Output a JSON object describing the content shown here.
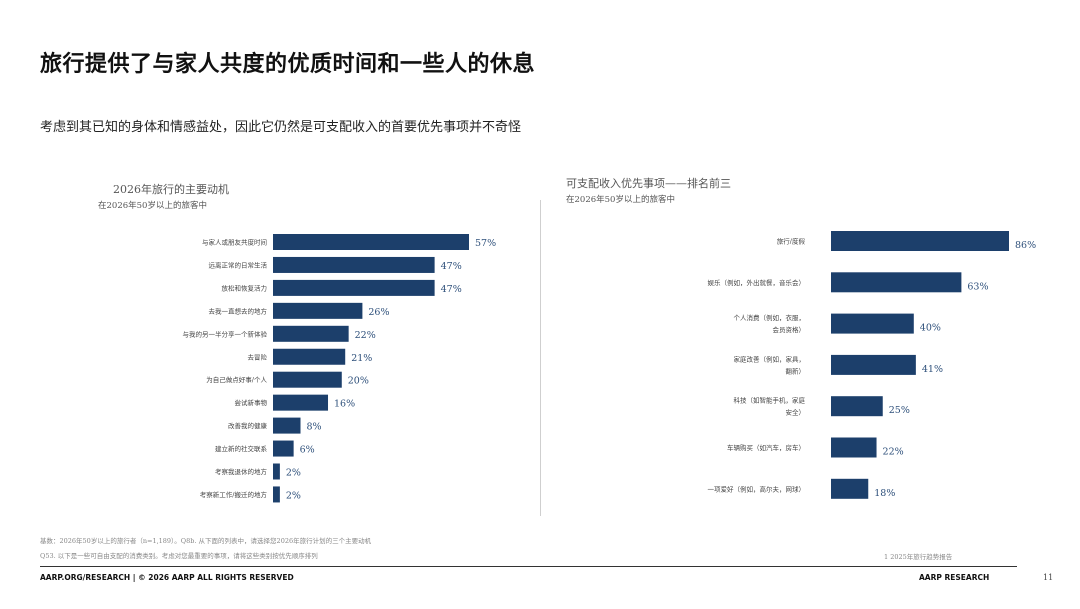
{
  "header": {
    "title": "旅行提供了与家人共度的优质时间和一些人的休息",
    "subtitle": "考虑到其已知的身体和情感益处，因此它仍然是可支配收入的首要优先事项并不奇怪"
  },
  "chart_data": [
    {
      "type": "bar",
      "orientation": "horizontal",
      "title": "2026年旅行的主要动机",
      "subtitle": "在2026年50岁以上的旅客中",
      "categories": [
        "与家人或朋友共度时间",
        "远离正常的日常生活",
        "放松和恢复活力",
        "去我一直想去的地方",
        "与我的另一半分享一个新体验",
        "去冒险",
        "为自己做点好事/个人",
        "尝试新事物",
        "改善我的健康",
        "建立新的社交联系",
        "考察我退休的地方",
        "考察新工作/搬迁的地方"
      ],
      "values": [
        57,
        47,
        47,
        26,
        22,
        21,
        20,
        16,
        8,
        6,
        2,
        2
      ],
      "value_labels": [
        "57%",
        "47%",
        "47%",
        "26%",
        "22%",
        "21%",
        "20%",
        "16%",
        "8%",
        "6%",
        "2%",
        "2%"
      ],
      "xlim": [
        0,
        60
      ],
      "color": "#1c3f6b"
    },
    {
      "type": "bar",
      "orientation": "horizontal",
      "title": "可支配收入优先事项——排名前三",
      "subtitle": "在2026年50岁以上的旅客中",
      "categories": [
        [
          "旅行/度假"
        ],
        [
          "娱乐（例如，外出就餐，音乐会）"
        ],
        [
          "个人消费（例如，衣服，",
          "会员资格）"
        ],
        [
          "家庭改善（例如，家具，",
          "翻新）"
        ],
        [
          "科技（如智能手机，家庭",
          "安全）"
        ],
        [
          "车辆购买（如汽车，房车）"
        ],
        [
          "一项爱好（例如，高尔夫，网球）"
        ]
      ],
      "values": [
        86,
        63,
        40,
        41,
        25,
        22,
        18
      ],
      "value_labels": [
        "86%",
        "63%",
        "40%",
        "41%",
        "25%",
        "22%",
        "18%"
      ],
      "xlim": [
        0,
        90
      ],
      "color": "#1c3f6b"
    }
  ],
  "footer": {
    "note1": "基数：2026年50岁以上的旅行者（n=1,189）。Q8b. 从下面的列表中，请选择您2026年旅行计划的三个主要动机",
    "note2": "Q53. 以下是一些可自由支配的消费类别。考虑对您最重要的事项，请将这些类别按优先顺序排列",
    "source": "1 2025年旅行趋势报告",
    "left": "AARP.ORG/RESEARCH | © 2026 AARP ALL RIGHTS RESERVED",
    "right": "AARP RESEARCH",
    "page": "11"
  }
}
